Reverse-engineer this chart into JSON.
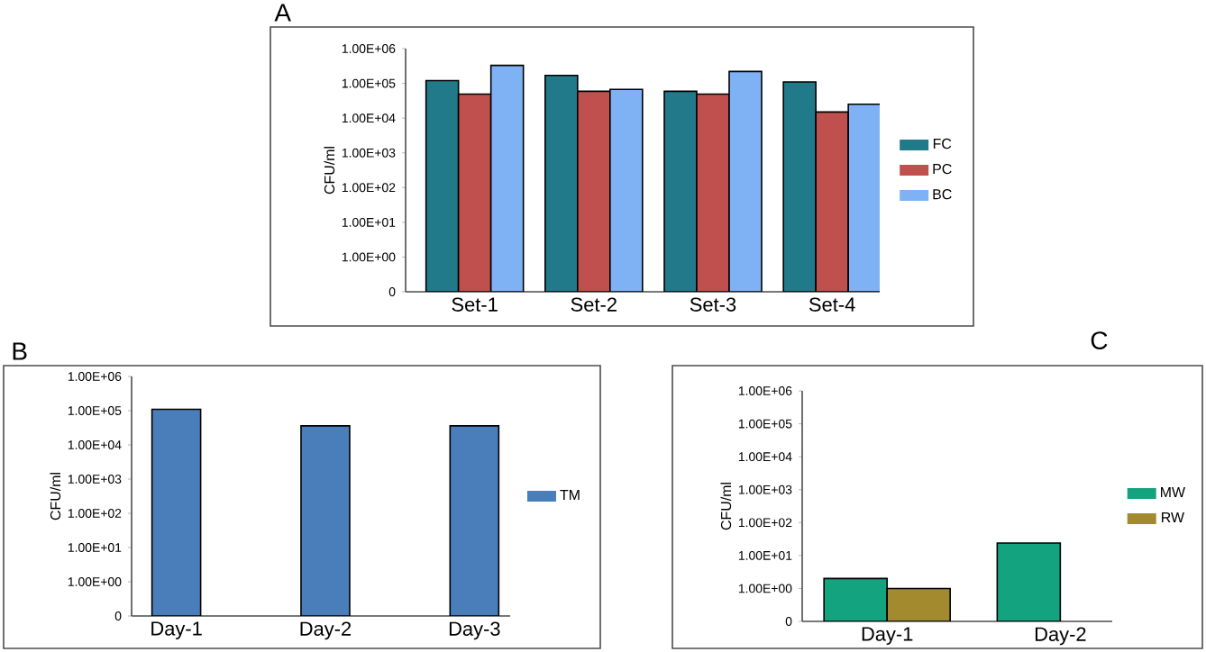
{
  "chart_data": [
    {
      "type": "bar",
      "title": "A",
      "ylabel": "CFU/ml",
      "categories": [
        "Set-1",
        "Set-2",
        "Set-3",
        "Set-4"
      ],
      "series": [
        {
          "name": "FC",
          "color": "#217a8a",
          "values": [
            120000,
            170000,
            59000,
            110000
          ]
        },
        {
          "name": "PC",
          "color": "#c0504d",
          "values": [
            49000,
            59000,
            49000,
            15000
          ]
        },
        {
          "name": "BC",
          "color": "#7fb2f5",
          "values": [
            330000,
            67000,
            220000,
            25000
          ]
        }
      ],
      "log": true,
      "ylim": [
        0.1,
        1000000
      ],
      "yticks": [
        {
          "value": 0.1,
          "label": "0"
        },
        {
          "value": 1,
          "label": "1.00E+00"
        },
        {
          "value": 10,
          "label": "1.00E+01"
        },
        {
          "value": 100,
          "label": "1.00E+02"
        },
        {
          "value": 1000,
          "label": "1.00E+03"
        },
        {
          "value": 10000,
          "label": "1.00E+04"
        },
        {
          "value": 100000,
          "label": "1.00E+05"
        },
        {
          "value": 1000000,
          "label": "1.00E+06"
        }
      ],
      "legend": "right"
    },
    {
      "type": "bar",
      "title": "B",
      "ylabel": "CFU/ml",
      "categories": [
        "Day-1",
        "Day-2",
        "Day-3"
      ],
      "series": [
        {
          "name": "TM",
          "color": "#4a7ebb",
          "values": [
            110000,
            36000,
            36000
          ]
        }
      ],
      "log": true,
      "ylim": [
        0.1,
        1000000
      ],
      "yticks": [
        {
          "value": 0.1,
          "label": "0"
        },
        {
          "value": 1,
          "label": "1.00E+00"
        },
        {
          "value": 10,
          "label": "1.00E+01"
        },
        {
          "value": 100,
          "label": "1.00E+02"
        },
        {
          "value": 1000,
          "label": "1.00E+03"
        },
        {
          "value": 10000,
          "label": "1.00E+04"
        },
        {
          "value": 100000,
          "label": "1.00E+05"
        },
        {
          "value": 1000000,
          "label": "1.00E+06"
        }
      ],
      "legend": "right"
    },
    {
      "type": "bar",
      "title": "C",
      "ylabel": "CFU/ml",
      "categories": [
        "Day-1",
        "Day-2"
      ],
      "series": [
        {
          "name": "MW",
          "color": "#14a37f",
          "values": [
            2,
            24
          ]
        },
        {
          "name": "RW",
          "color": "#a38a2e",
          "values": [
            1,
            null
          ]
        }
      ],
      "log": true,
      "ylim": [
        0.1,
        1000000
      ],
      "yticks": [
        {
          "value": 0.1,
          "label": "0"
        },
        {
          "value": 1,
          "label": "1.00E+00"
        },
        {
          "value": 10,
          "label": "1.00E+01"
        },
        {
          "value": 100,
          "label": "1.00E+02"
        },
        {
          "value": 1000,
          "label": "1.00E+03"
        },
        {
          "value": 10000,
          "label": "1.00E+04"
        },
        {
          "value": 100000,
          "label": "1.00E+05"
        },
        {
          "value": 1000000,
          "label": "1.00E+06"
        }
      ],
      "legend": "right"
    }
  ]
}
